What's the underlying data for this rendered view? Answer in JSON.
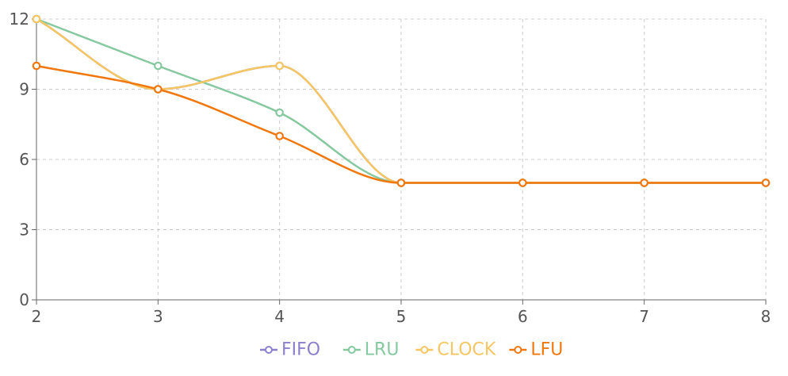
{
  "chart_data": {
    "type": "line",
    "title": "",
    "xlabel": "",
    "ylabel": "",
    "x": [
      2,
      3,
      4,
      5,
      6,
      7,
      8
    ],
    "xlim": [
      2,
      8
    ],
    "ylim": [
      0,
      12
    ],
    "yticks": [
      0,
      3,
      6,
      9,
      12
    ],
    "xticks": [
      2,
      3,
      4,
      5,
      6,
      7,
      8
    ],
    "grid": true,
    "smooth": true,
    "legend_position": "bottom",
    "series": [
      {
        "name": "FIFO",
        "color": "#8b80cc",
        "values": [
          12,
          9,
          10,
          5,
          5,
          5,
          5
        ]
      },
      {
        "name": "LRU",
        "color": "#86c8a0",
        "values": [
          12,
          10,
          8,
          5,
          5,
          5,
          5
        ]
      },
      {
        "name": "CLOCK",
        "color": "#f5c662",
        "values": [
          12,
          9,
          10,
          5,
          5,
          5,
          5
        ]
      },
      {
        "name": "LFU",
        "color": "#f0780f",
        "values": [
          10,
          9,
          7,
          5,
          5,
          5,
          5
        ]
      }
    ]
  }
}
